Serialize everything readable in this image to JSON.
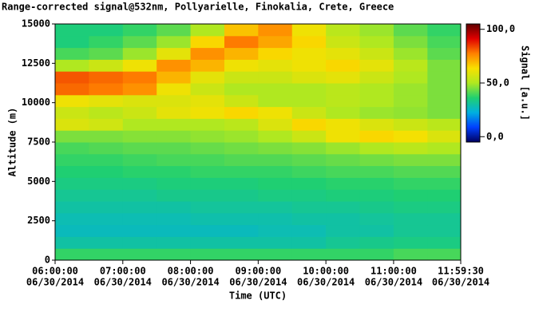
{
  "chart_data": {
    "type": "heatmap",
    "title": "Range-corrected signal@532nm, Pollyarielle, Finokalia, Crete, Greece",
    "x_label": "Time (UTC)",
    "y_label": "Altitude (m)",
    "colorbar_label": "Signal [a.u.]",
    "x": [
      "2014-06-30T06:00:00",
      "2014-06-30T06:30:00",
      "2014-06-30T07:00:00",
      "2014-06-30T07:30:00",
      "2014-06-30T08:00:00",
      "2014-06-30T08:30:00",
      "2014-06-30T09:00:00",
      "2014-06-30T09:30:00",
      "2014-06-30T10:00:00",
      "2014-06-30T10:30:00",
      "2014-06-30T11:00:00",
      "2014-06-30T11:30:00"
    ],
    "y": [
      0,
      750,
      1500,
      2250,
      3000,
      3750,
      4500,
      5250,
      6000,
      6750,
      7500,
      8250,
      9000,
      9750,
      10500,
      11250,
      12000,
      12750,
      13500,
      14250
    ],
    "z": [
      [
        38,
        38,
        38,
        38,
        38,
        38,
        38,
        38,
        38,
        38,
        40,
        40
      ],
      [
        30,
        30,
        30,
        30,
        30,
        30,
        30,
        30,
        32,
        33,
        34,
        34
      ],
      [
        27,
        27,
        27,
        27,
        27,
        27,
        28,
        28,
        30,
        30,
        32,
        32
      ],
      [
        28,
        28,
        28,
        28,
        29,
        29,
        29,
        30,
        30,
        31,
        32,
        32
      ],
      [
        30,
        30,
        30,
        30,
        31,
        31,
        31,
        32,
        32,
        33,
        34,
        34
      ],
      [
        32,
        32,
        32,
        33,
        33,
        33,
        34,
        34,
        35,
        35,
        36,
        36
      ],
      [
        34,
        34,
        34,
        35,
        35,
        35,
        36,
        36,
        37,
        37,
        38,
        38
      ],
      [
        36,
        36,
        37,
        37,
        38,
        38,
        38,
        39,
        40,
        40,
        41,
        41
      ],
      [
        38,
        38,
        39,
        40,
        40,
        41,
        41,
        42,
        43,
        44,
        45,
        45
      ],
      [
        40,
        41,
        42,
        42,
        43,
        44,
        45,
        46,
        48,
        50,
        52,
        50
      ],
      [
        45,
        45,
        46,
        46,
        47,
        48,
        50,
        55,
        62,
        65,
        63,
        58
      ],
      [
        58,
        56,
        50,
        50,
        50,
        52,
        58,
        65,
        62,
        58,
        55,
        52
      ],
      [
        55,
        52,
        55,
        60,
        62,
        65,
        62,
        55,
        50,
        48,
        47,
        45
      ],
      [
        62,
        60,
        58,
        58,
        60,
        55,
        50,
        50,
        52,
        50,
        48,
        45
      ],
      [
        80,
        78,
        75,
        62,
        55,
        50,
        50,
        50,
        52,
        50,
        48,
        45
      ],
      [
        82,
        80,
        78,
        70,
        60,
        55,
        55,
        58,
        60,
        55,
        50,
        45
      ],
      [
        50,
        55,
        62,
        75,
        70,
        62,
        60,
        62,
        65,
        60,
        52,
        45
      ],
      [
        40,
        42,
        48,
        60,
        75,
        70,
        65,
        62,
        60,
        55,
        48,
        42
      ],
      [
        35,
        38,
        42,
        48,
        65,
        78,
        72,
        65,
        55,
        50,
        45,
        40
      ],
      [
        35,
        35,
        38,
        42,
        50,
        68,
        75,
        62,
        52,
        48,
        42,
        38
      ]
    ],
    "xlim": [
      "2014-06-30T06:00:00",
      "2014-06-30T11:59:30"
    ],
    "xticks": [
      {
        "value": "2014-06-30T06:00:00",
        "label": [
          "06:00:00",
          "06/30/2014"
        ]
      },
      {
        "value": "2014-06-30T07:00:00",
        "label": [
          "07:00:00",
          "06/30/2014"
        ]
      },
      {
        "value": "2014-06-30T08:00:00",
        "label": [
          "08:00:00",
          "06/30/2014"
        ]
      },
      {
        "value": "2014-06-30T09:00:00",
        "label": [
          "09:00:00",
          "06/30/2014"
        ]
      },
      {
        "value": "2014-06-30T10:00:00",
        "label": [
          "10:00:00",
          "06/30/2014"
        ]
      },
      {
        "value": "2014-06-30T11:00:00",
        "label": [
          "11:00:00",
          "06/30/2014"
        ]
      },
      {
        "value": "2014-06-30T11:59:30",
        "label": [
          "11:59:30",
          "06/30/2014"
        ]
      }
    ],
    "ylim": [
      0,
      15000
    ],
    "yticks": [
      0,
      2500,
      5000,
      7500,
      10000,
      12500,
      15000
    ],
    "clim": [
      -5,
      105
    ],
    "cticks": [
      {
        "value": 0,
        "label": "0,0"
      },
      {
        "value": 50,
        "label": "50,0"
      },
      {
        "value": 100,
        "label": "100,0"
      }
    ],
    "colormap": [
      "#000060",
      "#0040ff",
      "#00b0e0",
      "#20d070",
      "#b0e820",
      "#f8e000",
      "#ff8000",
      "#e00000",
      "#600000"
    ]
  }
}
